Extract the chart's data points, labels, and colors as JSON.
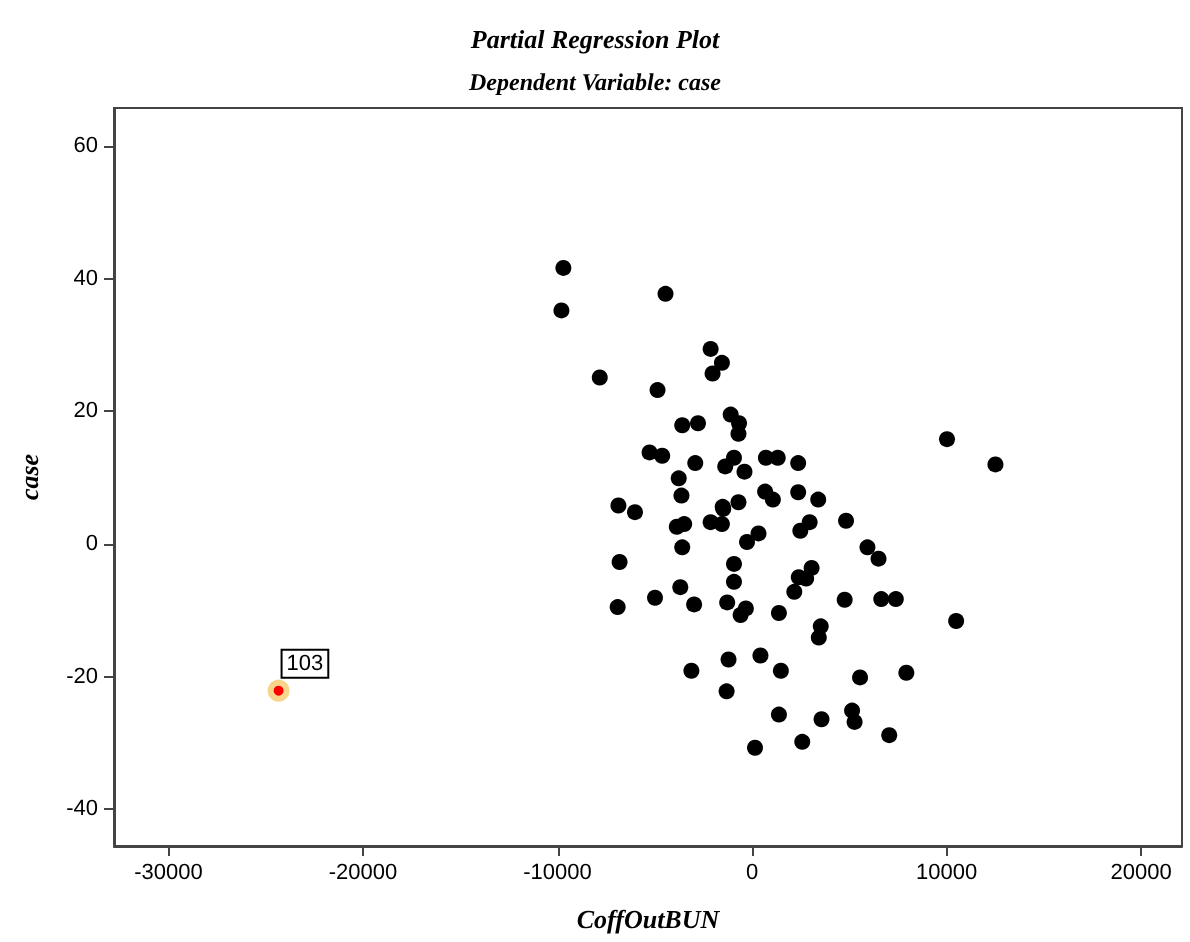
{
  "chart_data": {
    "type": "scatter",
    "title": "Partial Regression Plot",
    "subtitle": "Dependent Variable: case",
    "xlabel": "CoffOutBUN",
    "ylabel": "case",
    "xlim": [
      -32800,
      22100
    ],
    "ylim": [
      -45.5,
      65.7
    ],
    "xticks": [
      -30000,
      -20000,
      -10000,
      0,
      10000,
      20000
    ],
    "yticks": [
      -40,
      -20,
      0,
      20,
      40,
      60
    ],
    "grid": false,
    "marker": "circle",
    "series": [
      {
        "color": "#000000",
        "x": [
          -9700,
          -9800,
          -4450,
          -7830,
          -4860,
          -2130,
          -1550,
          -2030,
          -3590,
          -2780,
          -1100,
          -670,
          -700,
          -5270,
          -4620,
          -2920,
          -1380,
          -930,
          -390,
          710,
          1320,
          2370,
          10020,
          12510,
          -3770,
          -3630,
          -6870,
          -6020,
          -1510,
          -700,
          670,
          1070,
          2370,
          3400,
          -3870,
          -3490,
          -2130,
          -1550,
          -1480,
          4830,
          2960,
          2480,
          330,
          -260,
          -3590,
          5930,
          6500,
          -6810,
          -930,
          3060,
          2400,
          2780,
          -930,
          2170,
          -3690,
          -4990,
          -2980,
          -1280,
          -6910,
          -320,
          -590,
          1380,
          4760,
          6640,
          7390,
          10490,
          3530,
          3430,
          -3120,
          -1210,
          430,
          1480,
          -1310,
          5550,
          7930,
          1380,
          3570,
          5140,
          5270,
          7050,
          150,
          2580
        ],
        "values": [
          41.6,
          35.2,
          37.7,
          25.1,
          23.2,
          29.4,
          27.3,
          25.7,
          17.9,
          18.2,
          19.5,
          18.2,
          16.6,
          13.8,
          13.3,
          12.2,
          11.7,
          13.0,
          10.9,
          13.0,
          13.0,
          12.2,
          15.8,
          12.0,
          9.9,
          7.3,
          5.8,
          4.8,
          5.6,
          6.3,
          7.9,
          6.7,
          7.8,
          6.7,
          2.6,
          3.0,
          3.3,
          3.0,
          5.3,
          3.5,
          3.3,
          2.0,
          1.6,
          0.3,
          -0.5,
          -0.5,
          -2.2,
          -2.7,
          -3.0,
          -3.6,
          -5.0,
          -5.2,
          -5.7,
          -7.2,
          -6.5,
          -8.1,
          -9.1,
          -8.8,
          -9.5,
          -9.7,
          -10.7,
          -10.4,
          -8.4,
          -8.3,
          -8.3,
          -11.6,
          -12.4,
          -14.1,
          -19.1,
          -17.4,
          -16.8,
          -19.1,
          -22.2,
          -20.1,
          -19.4,
          -25.7,
          -26.4,
          -25.1,
          -26.8,
          -28.8,
          -30.7,
          -29.8
        ]
      },
      {
        "color": "#ff0000",
        "x": [
          -24340
        ],
        "values": [
          -22.1
        ]
      }
    ],
    "annotations": [
      {
        "text": "103",
        "x": -24340,
        "y": -22.1
      }
    ]
  }
}
